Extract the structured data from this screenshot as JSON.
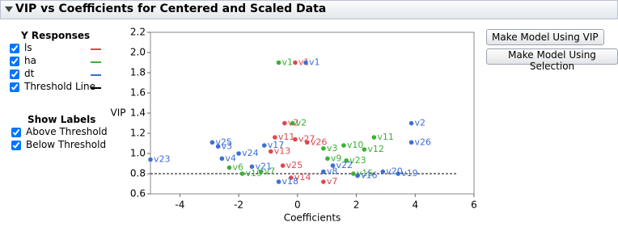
{
  "panel_title": "VIP vs Coefficients for Centered and Scaled Data",
  "ui": {
    "legend_title": "Y Responses",
    "show_labels_title": "Show Labels",
    "show_labels_options": [
      "Above Threshold",
      "Below Threshold"
    ],
    "buttons": [
      "Make Model Using VIP",
      "Make Model Using Selection"
    ]
  },
  "chart_data": {
    "type": "scatter",
    "xlabel": "Coefficients",
    "ylabel": "VIP",
    "xlim": [
      -5,
      6
    ],
    "ylim": [
      0.6,
      2.2
    ],
    "xticks": [
      -4,
      -2,
      0,
      2,
      4,
      6
    ],
    "yticks": [
      0.6,
      0.8,
      {
        "value": 1,
        "label": "1.0"
      },
      1.2,
      1.4,
      1.6,
      1.8,
      {
        "value": 2,
        "label": "2.0"
      },
      2.2
    ],
    "threshold": 0.8,
    "threshold_label": "Threshold Line",
    "threshold_color": "#000000",
    "series": [
      {
        "name": "ls",
        "color": "#e0464f",
        "x": [
          -0.08,
          -0.44,
          -0.08,
          0.33,
          -0.91,
          -0.5,
          0.88,
          -0.22,
          -0.77
        ],
        "values": [
          1.9,
          1.3,
          1.14,
          1.11,
          1.02,
          0.88,
          0.72,
          0.76,
          1.16
        ],
        "labels": [
          "v1",
          "v2",
          "v27",
          "v26",
          "v13",
          "v25",
          "v7",
          "v14",
          "v11"
        ]
      },
      {
        "name": "ha",
        "color": "#3cb034",
        "x": [
          -0.64,
          -0.17,
          2.6,
          1.57,
          2.27,
          0.88,
          1.66,
          -2.32,
          -1.88,
          -1.24,
          1.9,
          1.02
        ],
        "values": [
          1.9,
          1.3,
          1.16,
          1.08,
          1.04,
          1.05,
          0.93,
          0.86,
          0.8,
          0.82,
          0.8,
          0.95
        ],
        "labels": [
          "v1",
          "v2",
          "v11",
          "v10",
          "v12",
          "v3",
          "v23",
          "v6",
          "v19",
          "v7",
          "v15",
          "v9"
        ]
      },
      {
        "name": "dt",
        "color": "#3c6ed6",
        "x": [
          -5.0,
          3.87,
          3.87,
          0.28,
          -2.9,
          -2.7,
          -2.57,
          -2.0,
          -1.13,
          2.9,
          3.42,
          2.04,
          0.88,
          -1.55,
          -0.64,
          1.2
        ],
        "values": [
          0.94,
          1.3,
          1.11,
          1.9,
          1.11,
          1.07,
          0.95,
          1.0,
          1.08,
          0.82,
          0.8,
          0.78,
          0.82,
          0.87,
          0.72,
          0.88
        ],
        "labels": [
          "v23",
          "v2",
          "v26",
          "v1",
          "v25",
          "v3",
          "v4",
          "v24",
          "v17",
          "v20",
          "v19",
          "v16",
          "v8",
          "v21",
          "v18",
          "v22"
        ]
      }
    ]
  }
}
